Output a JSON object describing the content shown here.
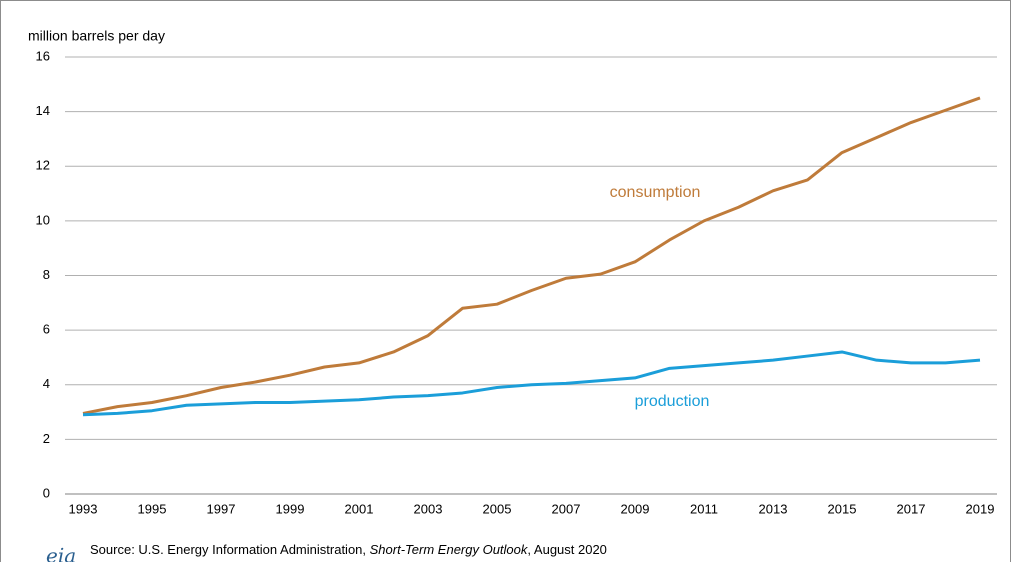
{
  "chart_data": {
    "type": "line",
    "y_label": "million barrels per day",
    "x": [
      1993,
      1994,
      1995,
      1996,
      1997,
      1998,
      1999,
      2000,
      2001,
      2002,
      2003,
      2004,
      2005,
      2006,
      2007,
      2008,
      2009,
      2010,
      2011,
      2012,
      2013,
      2014,
      2015,
      2016,
      2017,
      2018,
      2019
    ],
    "series": [
      {
        "name": "consumption",
        "color": "#bf7b3a",
        "values": [
          2.95,
          3.2,
          3.35,
          3.6,
          3.9,
          4.1,
          4.35,
          4.65,
          4.8,
          5.2,
          5.8,
          6.8,
          6.95,
          7.45,
          7.9,
          8.05,
          8.5,
          9.3,
          10.0,
          10.5,
          11.1,
          11.5,
          12.5,
          13.05,
          13.6,
          14.05,
          14.5
        ]
      },
      {
        "name": "production",
        "color": "#1b9ed9",
        "values": [
          2.9,
          2.95,
          3.05,
          3.25,
          3.3,
          3.35,
          3.35,
          3.4,
          3.45,
          3.55,
          3.6,
          3.7,
          3.9,
          4.0,
          4.05,
          4.15,
          4.25,
          4.6,
          4.7,
          4.8,
          4.9,
          5.05,
          5.2,
          4.9,
          4.8,
          4.8,
          4.9
        ]
      }
    ],
    "xlim": [
      1993,
      2019
    ],
    "xticks": [
      1993,
      1995,
      1997,
      1999,
      2001,
      2003,
      2005,
      2007,
      2009,
      2011,
      2013,
      2015,
      2017,
      2019
    ],
    "ylim": [
      0,
      16
    ],
    "yticks": [
      0,
      2,
      4,
      6,
      8,
      10,
      12,
      14,
      16
    ],
    "grid": true,
    "logo": "eia",
    "source": [
      "Source: U.S. Energy Information Administration, ",
      "Short-Term Energy Outlook",
      ", August 2020"
    ]
  }
}
